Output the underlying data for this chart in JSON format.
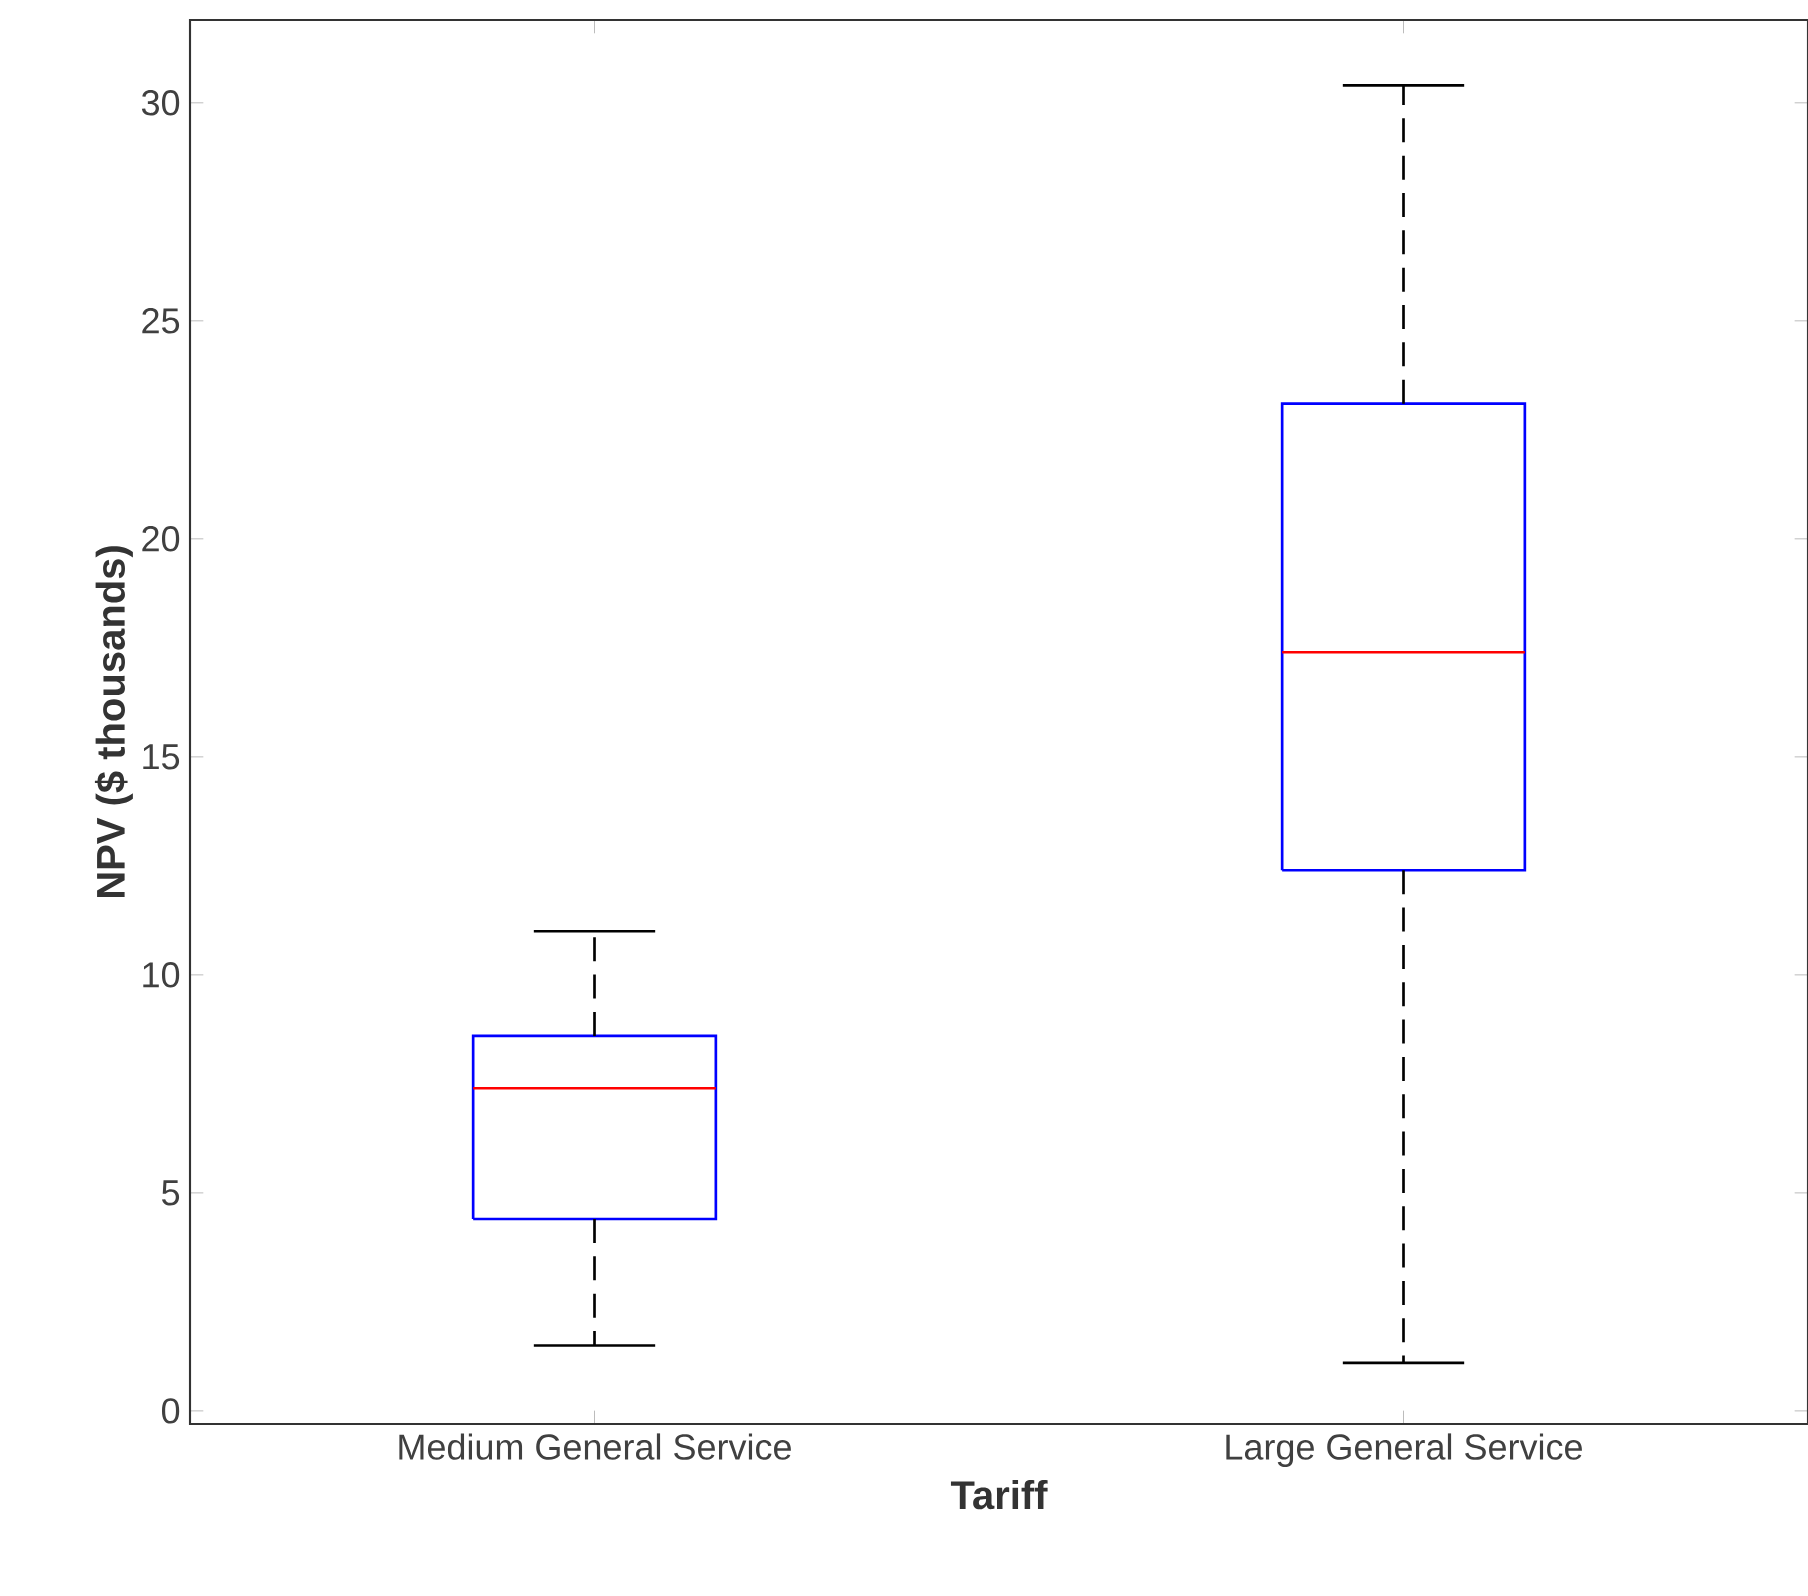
{
  "chart_data": {
    "type": "box",
    "xlabel": "Tariff",
    "ylabel": "NPV ($ thousands)",
    "categories": [
      "Medium General Service",
      "Large General Service"
    ],
    "color": "#0000ff",
    "boxes": [
      {
        "low": 1.5,
        "q1": 4.4,
        "median": 7.4,
        "q3": 8.6,
        "high": 11.0
      },
      {
        "low": 1.1,
        "q1": 12.4,
        "median": 17.4,
        "q3": 23.1,
        "high": 30.4
      }
    ],
    "ylim": [
      -0.3,
      31.9
    ],
    "yticks": [
      0,
      5,
      10,
      15,
      20,
      25,
      30
    ],
    "grid": false
  }
}
